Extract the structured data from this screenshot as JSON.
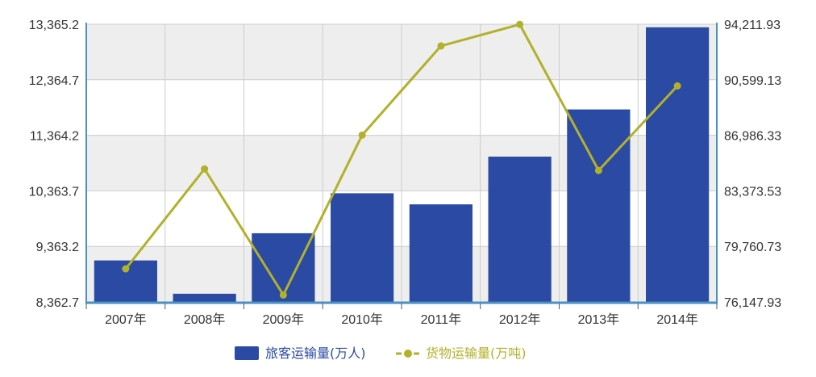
{
  "colors": {
    "bar": "#2b4aa3",
    "line": "#b2b12a",
    "axis": "#4a90c2",
    "band_light": "#ffffff",
    "band_dark": "#eeeeee",
    "grid": "#cccccc"
  },
  "legend": {
    "bar_label": "旅客运输量(万人)",
    "line_label": "货物运输量(万吨)"
  },
  "chart_data": {
    "type": "bar",
    "categories": [
      "2007年",
      "2008年",
      "2009年",
      "2010年",
      "2011年",
      "2012年",
      "2013年",
      "2014年"
    ],
    "series": [
      {
        "name": "旅客运输量(万人)",
        "type": "bar",
        "axis": "left",
        "values": [
          9110,
          8510,
          9600,
          10320,
          10120,
          10980,
          11830,
          13310
        ]
      },
      {
        "name": "货物运输量(万吨)",
        "type": "line",
        "axis": "right",
        "values": [
          78300,
          84800,
          76600,
          87000,
          92800,
          94200,
          84700,
          90200
        ]
      }
    ],
    "y_left": {
      "ylim": [
        8362.7,
        13365.2
      ],
      "ticks": [
        "8,362.7",
        "9,363.2",
        "10,363.7",
        "11,364.2",
        "12,364.7",
        "13,365.2"
      ]
    },
    "y_right": {
      "ylim": [
        76147.93,
        94211.93
      ],
      "ticks": [
        "76,147.93",
        "79,760.73",
        "83,373.53",
        "86,986.33",
        "90,599.13",
        "94,211.93"
      ]
    },
    "grid": true,
    "legend_position": "bottom"
  }
}
